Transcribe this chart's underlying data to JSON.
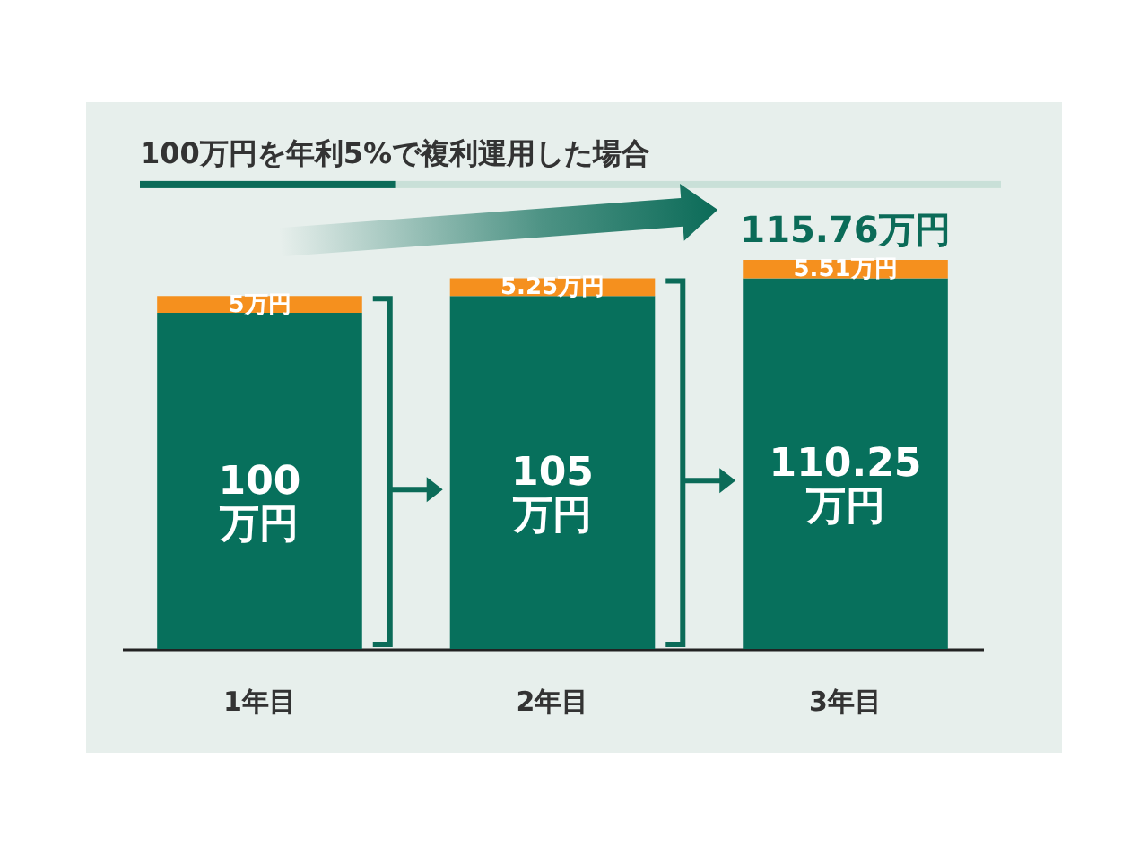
{
  "chart_data": {
    "type": "bar",
    "title": "100万円を年利5%で複利運用した場合",
    "categories": [
      "1年目",
      "2年目",
      "3年目"
    ],
    "stacked": true,
    "series": [
      {
        "color": "#07705c",
        "values": [
          100,
          105,
          110.25
        ],
        "value_labels": [
          "100\n万円",
          "105\n万円",
          "110.25\n万円"
        ]
      },
      {
        "color": "#f5901e",
        "values": [
          5,
          5.25,
          5.51
        ],
        "value_labels": [
          "5万円",
          "5.25万円",
          "5.51万円"
        ]
      }
    ],
    "totals": [
      null,
      null,
      "115.76万円"
    ]
  }
}
